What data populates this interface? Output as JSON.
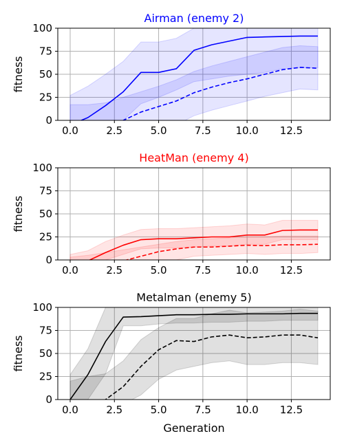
{
  "chart_data": [
    {
      "type": "line",
      "title": "Airman (enemy 2)",
      "title_color": "#0000ff",
      "color": "#0000ff",
      "xlabel": "",
      "ylabel": "fitness",
      "xlim": [
        -0.7,
        14.7
      ],
      "ylim": [
        0,
        100
      ],
      "xticks": [
        "0.0",
        "2.5",
        "5.0",
        "7.5",
        "10.0",
        "12.5"
      ],
      "yticks": [
        "0",
        "25",
        "50",
        "75",
        "100"
      ],
      "grid": true,
      "x": [
        0,
        1,
        2,
        3,
        4,
        5,
        6,
        7,
        8,
        9,
        10,
        11,
        12,
        13,
        14
      ],
      "series": [
        {
          "style": "solid",
          "values": [
            -5,
            3,
            16,
            31,
            52,
            52,
            56,
            76,
            82,
            86,
            90,
            90.5,
            91,
            91.5,
            91.5
          ]
        },
        {
          "style": "dashed",
          "values": [
            -20,
            -12,
            -8,
            0,
            9,
            15,
            21,
            30,
            36,
            41,
            45,
            50,
            55,
            57.5,
            56.5
          ]
        }
      ],
      "bands": [
        {
          "lower": [
            -5,
            -5,
            -5,
            0,
            18,
            25,
            33,
            42,
            45,
            48,
            50,
            52,
            56,
            57,
            57
          ],
          "upper": [
            27,
            37,
            50,
            64,
            85,
            85,
            89,
            100,
            100,
            100,
            100,
            100,
            100,
            100,
            100
          ]
        },
        {
          "lower": [
            -5,
            -5,
            -5,
            -5,
            -5,
            -5,
            -5,
            5,
            11,
            16,
            21,
            26,
            30,
            34,
            33
          ],
          "upper": [
            17,
            17,
            19,
            25,
            31,
            37,
            44,
            53,
            59,
            64,
            69,
            74,
            79,
            81,
            80
          ]
        }
      ]
    },
    {
      "type": "line",
      "title": "HeatMan (enemy 4)",
      "title_color": "#ff0000",
      "color": "#ff0000",
      "xlabel": "",
      "ylabel": "fitness",
      "xlim": [
        -0.7,
        14.7
      ],
      "ylim": [
        0,
        100
      ],
      "xticks": [
        "0.0",
        "2.5",
        "5.0",
        "7.5",
        "10.0",
        "12.5"
      ],
      "yticks": [
        "0",
        "25",
        "50",
        "75",
        "100"
      ],
      "grid": true,
      "x": [
        0,
        1,
        2,
        3,
        4,
        5,
        6,
        7,
        8,
        9,
        10,
        11,
        12,
        13,
        14
      ],
      "series": [
        {
          "style": "solid",
          "values": [
            -3,
            -1,
            8,
            16,
            22,
            23,
            23,
            24,
            25,
            25,
            27,
            27,
            32,
            32.5,
            32.5
          ]
        },
        {
          "style": "dashed",
          "values": [
            -15,
            -10,
            -5,
            -1,
            4,
            9,
            12,
            14,
            14,
            15,
            16,
            15.5,
            16.5,
            16.5,
            17
          ]
        }
      ],
      "bands": [
        {
          "lower": [
            -5,
            -5,
            0,
            6,
            12,
            13,
            13,
            14,
            15,
            15,
            17,
            17,
            22,
            22,
            22
          ],
          "upper": [
            6,
            10,
            20,
            27,
            33,
            34,
            34,
            35,
            36,
            37,
            39,
            38,
            43,
            43,
            43
          ]
        },
        {
          "lower": [
            -5,
            -5,
            -5,
            -5,
            -5,
            -3,
            0,
            4,
            5,
            6,
            7,
            6,
            7,
            7,
            8
          ],
          "upper": [
            3,
            5,
            8,
            11,
            14,
            17,
            20,
            22,
            23,
            24,
            25,
            25,
            26,
            26,
            26
          ]
        }
      ]
    },
    {
      "type": "line",
      "title": "Metalman (enemy 5)",
      "title_color": "#000000",
      "color": "#000000",
      "xlabel": "Generation",
      "ylabel": "fitness",
      "xlim": [
        -0.7,
        14.7
      ],
      "ylim": [
        0,
        100
      ],
      "xticks": [
        "0.0",
        "2.5",
        "5.0",
        "7.5",
        "10.0",
        "12.5"
      ],
      "yticks": [
        "0",
        "25",
        "50",
        "75",
        "100"
      ],
      "grid": true,
      "x": [
        0,
        1,
        2,
        3,
        4,
        5,
        6,
        7,
        8,
        9,
        10,
        11,
        12,
        13,
        14
      ],
      "series": [
        {
          "style": "solid",
          "values": [
            0,
            27,
            63,
            89.5,
            90,
            91,
            92,
            92,
            92.5,
            92.5,
            93,
            93,
            93,
            93.5,
            93.5
          ]
        },
        {
          "style": "dashed",
          "values": [
            -20,
            -10,
            0,
            14,
            36,
            54,
            64,
            63,
            68,
            70,
            67,
            68,
            70,
            70,
            67
          ]
        }
      ],
      "bands": [
        {
          "lower": [
            -5,
            0,
            28,
            80,
            80,
            82,
            83,
            83,
            84,
            84,
            85,
            85,
            86,
            86,
            86
          ],
          "upper": [
            27,
            55,
            100,
            100,
            100,
            100,
            100,
            100,
            100,
            100,
            100,
            100,
            100,
            100,
            100
          ]
        },
        {
          "lower": [
            -5,
            -5,
            -5,
            -5,
            5,
            22,
            32,
            36,
            40,
            42,
            38,
            38,
            40,
            40,
            38
          ],
          "upper": [
            20,
            25,
            28,
            42,
            65,
            78,
            88,
            88,
            93,
            97,
            94,
            95,
            96,
            98,
            96
          ]
        }
      ]
    }
  ]
}
